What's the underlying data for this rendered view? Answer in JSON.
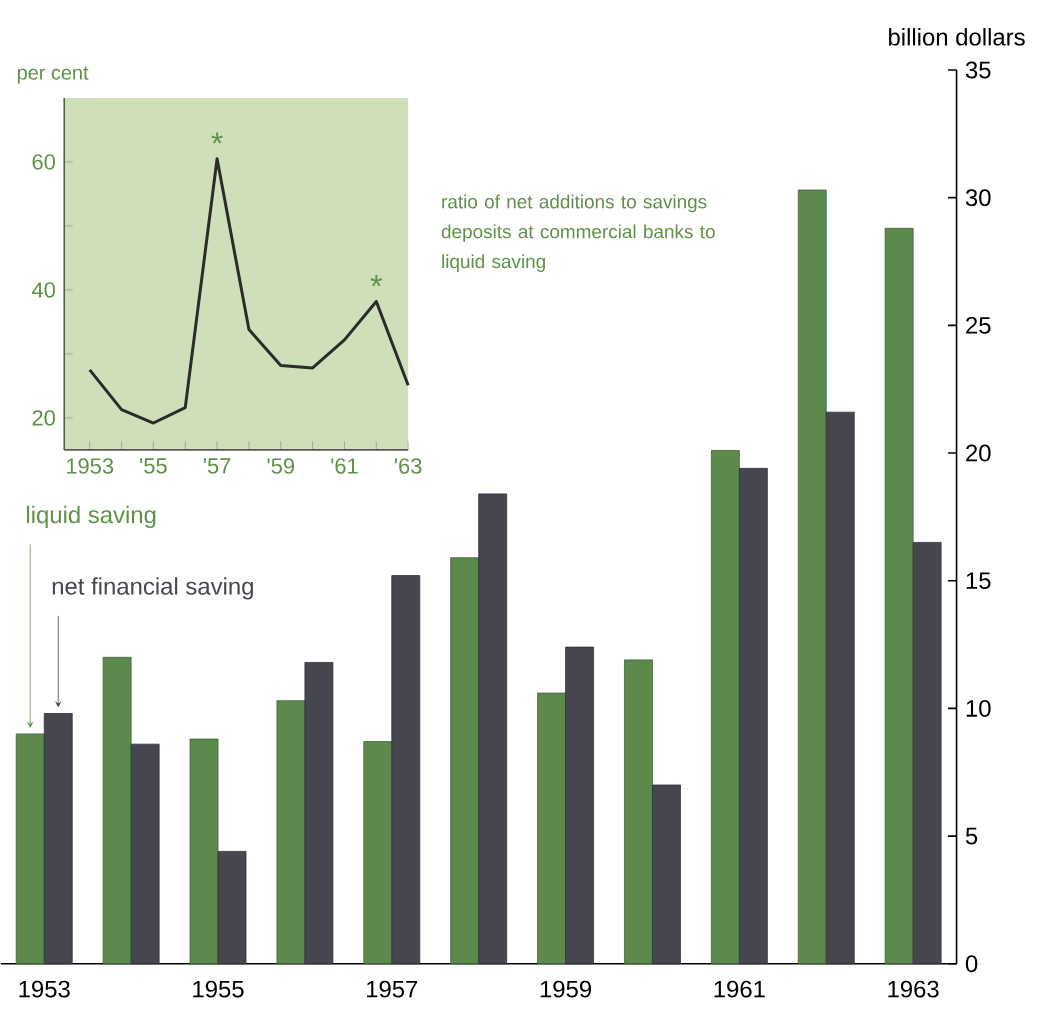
{
  "chart_data": [
    {
      "type": "bar",
      "ylabel": "billion dollars",
      "annotations": [
        "ratio of net additions to savings deposits at commercial banks to liquid saving"
      ],
      "categories": [
        "1953",
        null,
        "1955",
        null,
        "1957",
        null,
        "1959",
        null,
        "1961",
        null,
        "1963"
      ],
      "series": [
        {
          "name": "liquid saving",
          "color": "#5b8a4c",
          "values": [
            9.0,
            12.0,
            8.8,
            10.3,
            8.7,
            15.9,
            10.6,
            11.9,
            20.1,
            30.3,
            28.8
          ]
        },
        {
          "name": "net financial saving",
          "color": "#45464e",
          "values": [
            9.8,
            8.6,
            4.4,
            11.8,
            15.2,
            18.4,
            12.4,
            7.0,
            19.4,
            21.6,
            16.5
          ]
        }
      ],
      "ylim": [
        0,
        35
      ],
      "yticks": [
        0,
        5,
        10,
        15,
        20,
        25,
        30,
        35
      ]
    },
    {
      "type": "line",
      "ylabel": "per cent",
      "x": [
        1953,
        1954,
        1955,
        1956,
        1957,
        1958,
        1959,
        1960,
        1961,
        1962,
        1963
      ],
      "series": [
        {
          "color": "#2b2b2b",
          "values": [
            27.5,
            21.3,
            19.2,
            21.6,
            60.5,
            33.8,
            28.2,
            27.8,
            32.2,
            38.2,
            25.1
          ]
        }
      ],
      "xlim": [
        1952.2,
        1963
      ],
      "xticks": [
        {
          "value": 1953,
          "label": "1953"
        },
        {
          "value": 1954,
          "label": null
        },
        {
          "value": 1955,
          "label": "'55"
        },
        {
          "value": 1956,
          "label": null
        },
        {
          "value": 1957,
          "label": "'57"
        },
        {
          "value": 1958,
          "label": null
        },
        {
          "value": 1959,
          "label": "'59"
        },
        {
          "value": 1960,
          "label": null
        },
        {
          "value": 1961,
          "label": "'61"
        },
        {
          "value": 1962,
          "label": null
        },
        {
          "value": 1963,
          "label": "'63"
        }
      ],
      "ylim": [
        15,
        70
      ],
      "yticks": [
        20,
        {
          "value": 30,
          "label": null
        },
        40,
        {
          "value": 50,
          "label": null
        },
        60
      ],
      "annotations": [
        {
          "text": "*",
          "x": 1957,
          "y": 60.5
        },
        {
          "text": "*",
          "x": 1962,
          "y": 38.2
        }
      ]
    }
  ]
}
